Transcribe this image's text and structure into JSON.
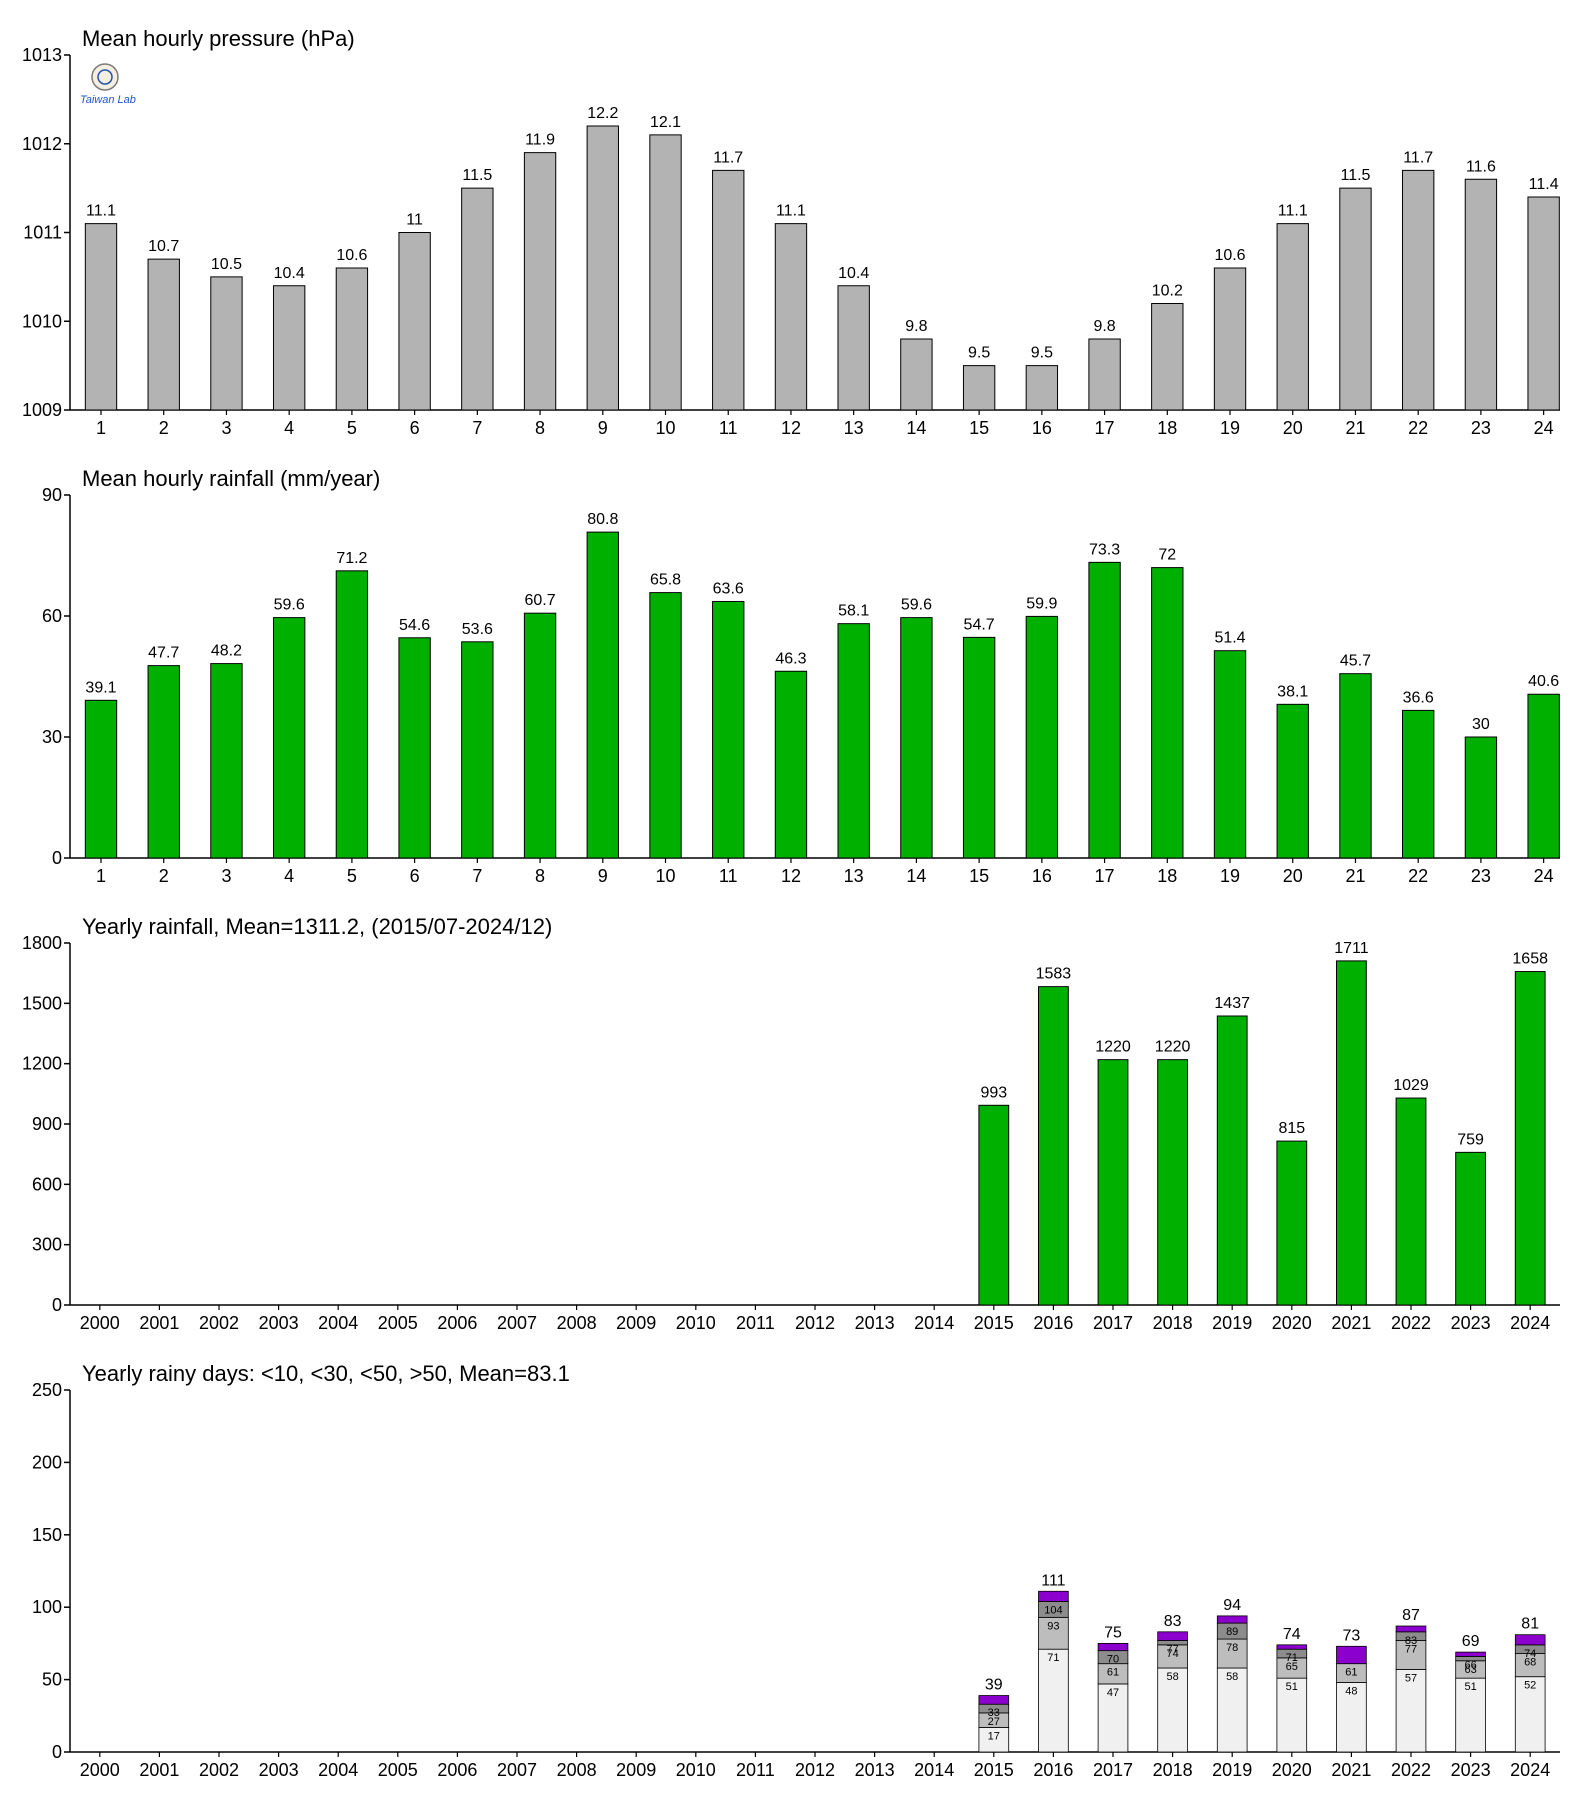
{
  "logo": {
    "text": "Taiwan Lab"
  },
  "colors": {
    "pressure": "#b3b3b3",
    "rain": "#00b000",
    "rd1": "#f0f0f0",
    "rd2": "#bdbdbd",
    "rd3": "#8c8c8c",
    "rd4": "#8b00cc"
  },
  "chart_data": [
    {
      "type": "bar",
      "title": "Mean hourly pressure (hPa)",
      "categories": [
        "1",
        "2",
        "3",
        "4",
        "5",
        "6",
        "7",
        "8",
        "9",
        "10",
        "11",
        "12",
        "13",
        "14",
        "15",
        "16",
        "17",
        "18",
        "19",
        "20",
        "21",
        "22",
        "23",
        "24"
      ],
      "values": [
        1011.1,
        1010.7,
        1010.5,
        1010.4,
        1010.6,
        1011.0,
        1011.5,
        1011.9,
        1012.2,
        1012.1,
        1011.7,
        1011.1,
        1010.4,
        1009.8,
        1009.5,
        1009.5,
        1009.8,
        1010.2,
        1010.6,
        1011.1,
        1011.5,
        1011.7,
        1011.6,
        1011.4
      ],
      "labels": [
        "11.1",
        "10.7",
        "10.5",
        "10.4",
        "10.6",
        "11",
        "11.5",
        "11.9",
        "12.2",
        "12.1",
        "11.7",
        "11.1",
        "10.4",
        "9.8",
        "9.5",
        "9.5",
        "9.8",
        "10.2",
        "10.6",
        "11.1",
        "11.5",
        "11.7",
        "11.6",
        "11.4"
      ],
      "yticks": [
        "1009",
        "1010",
        "1011",
        "1012",
        "1013"
      ],
      "ylim": [
        1009,
        1013
      ]
    },
    {
      "type": "bar",
      "title": "Mean hourly rainfall (mm/year)",
      "categories": [
        "1",
        "2",
        "3",
        "4",
        "5",
        "6",
        "7",
        "8",
        "9",
        "10",
        "11",
        "12",
        "13",
        "14",
        "15",
        "16",
        "17",
        "18",
        "19",
        "20",
        "21",
        "22",
        "23",
        "24"
      ],
      "values": [
        39.1,
        47.7,
        48.2,
        59.6,
        71.2,
        54.6,
        53.6,
        60.7,
        80.8,
        65.8,
        63.6,
        46.3,
        58.1,
        59.6,
        54.7,
        59.9,
        73.3,
        72.0,
        51.4,
        38.1,
        45.7,
        36.6,
        30.0,
        40.6
      ],
      "labels": [
        "39.1",
        "47.7",
        "48.2",
        "59.6",
        "71.2",
        "54.6",
        "53.6",
        "60.7",
        "80.8",
        "65.8",
        "63.6",
        "46.3",
        "58.1",
        "59.6",
        "54.7",
        "59.9",
        "73.3",
        "72",
        "51.4",
        "38.1",
        "45.7",
        "36.6",
        "30",
        "40.6"
      ],
      "yticks": [
        "0",
        "30",
        "60",
        "90"
      ],
      "ylim": [
        0,
        90
      ]
    },
    {
      "type": "bar",
      "title": "Yearly rainfall, Mean=1311.2, (2015/07-2024/12)",
      "categories": [
        "2000",
        "2001",
        "2002",
        "2003",
        "2004",
        "2005",
        "2006",
        "2007",
        "2008",
        "2009",
        "2010",
        "2011",
        "2012",
        "2013",
        "2014",
        "2015",
        "2016",
        "2017",
        "2018",
        "2019",
        "2020",
        "2021",
        "2022",
        "2023",
        "2024"
      ],
      "values": [
        null,
        null,
        null,
        null,
        null,
        null,
        null,
        null,
        null,
        null,
        null,
        null,
        null,
        null,
        null,
        993,
        1583,
        1220,
        1220,
        1437,
        815,
        1711,
        1029,
        759,
        1658
      ],
      "labels": [
        "",
        "",
        "",
        "",
        "",
        "",
        "",
        "",
        "",
        "",
        "",
        "",
        "",
        "",
        "",
        "993",
        "1583",
        "1220",
        "1220",
        "1437",
        "815",
        "1711",
        "1029",
        "759",
        "1658"
      ],
      "yticks": [
        "0",
        "300",
        "600",
        "900",
        "1200",
        "1500",
        "1800"
      ],
      "ylim": [
        0,
        1800
      ]
    },
    {
      "type": "bar",
      "stacked": true,
      "title": "Yearly rainy days: <10, <30, <50, >50, Mean=83.1",
      "categories": [
        "2000",
        "2001",
        "2002",
        "2003",
        "2004",
        "2005",
        "2006",
        "2007",
        "2008",
        "2009",
        "2010",
        "2011",
        "2012",
        "2013",
        "2014",
        "2015",
        "2016",
        "2017",
        "2018",
        "2019",
        "2020",
        "2021",
        "2022",
        "2023",
        "2024"
      ],
      "cumulative": [
        null,
        null,
        null,
        null,
        null,
        null,
        null,
        null,
        null,
        null,
        null,
        null,
        null,
        null,
        null,
        [
          17,
          27,
          33,
          39
        ],
        [
          71,
          93,
          104,
          111
        ],
        [
          47,
          61,
          70,
          75
        ],
        [
          58,
          74,
          77,
          83
        ],
        [
          58,
          78,
          89,
          94
        ],
        [
          51,
          65,
          71,
          74
        ],
        [
          48,
          61,
          61,
          73
        ],
        [
          57,
          77,
          83,
          87
        ],
        [
          51,
          63,
          66,
          69
        ],
        [
          52,
          68,
          74,
          81
        ]
      ],
      "segment_labels": [
        null,
        null,
        null,
        null,
        null,
        null,
        null,
        null,
        null,
        null,
        null,
        null,
        null,
        null,
        null,
        [
          "17",
          "27",
          "33"
        ],
        [
          "71",
          "93",
          "104"
        ],
        [
          "47",
          "61",
          "70"
        ],
        [
          "58",
          "74",
          "77"
        ],
        [
          "58",
          "78",
          "89"
        ],
        [
          "51",
          "65",
          "71"
        ],
        [
          "48",
          "61",
          ""
        ],
        [
          "57",
          "77",
          "83"
        ],
        [
          "51",
          "63",
          "66"
        ],
        [
          "52",
          "68",
          "74"
        ]
      ],
      "totals": [
        "",
        "",
        "",
        "",
        "",
        "",
        "",
        "",
        "",
        "",
        "",
        "",
        "",
        "",
        "",
        "39",
        "111",
        "75",
        "83",
        "94",
        "74",
        "73",
        "87",
        "69",
        "81"
      ],
      "yticks": [
        "0",
        "50",
        "100",
        "150",
        "200",
        "250"
      ],
      "ylim": [
        0,
        250
      ]
    }
  ]
}
